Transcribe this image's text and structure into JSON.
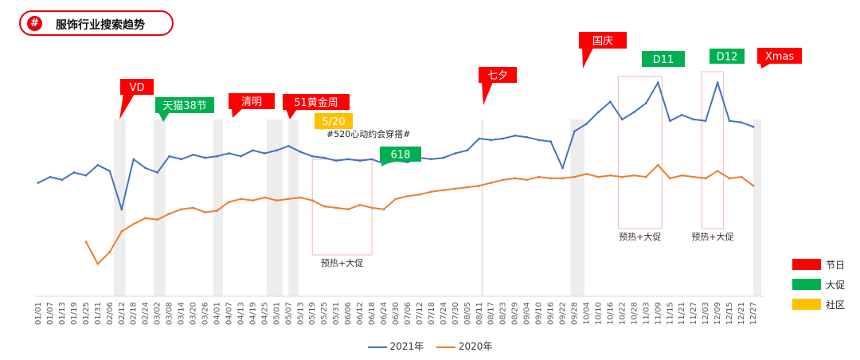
{
  "title": {
    "icon": "#",
    "text": "服饰行业搜索趋势"
  },
  "chart_data": {
    "type": "line",
    "title": "服饰行业搜索趋势",
    "x_ticks": [
      "01/01",
      "01/07",
      "01/13",
      "01/19",
      "01/25",
      "01/31",
      "02/06",
      "02/12",
      "02/18",
      "02/24",
      "03/02",
      "03/08",
      "03/14",
      "03/20",
      "03/26",
      "04/01",
      "04/07",
      "04/13",
      "04/19",
      "04/25",
      "05/01",
      "05/07",
      "05/13",
      "05/19",
      "05/25",
      "05/31",
      "06/06",
      "06/12",
      "06/18",
      "06/24",
      "06/30",
      "07/06",
      "07/12",
      "07/18",
      "07/24",
      "07/30",
      "08/05",
      "08/11",
      "08/17",
      "08/23",
      "08/29",
      "09/04",
      "09/10",
      "09/16",
      "09/22",
      "09/28",
      "10/04",
      "10/10",
      "10/16",
      "10/22",
      "10/28",
      "11/03",
      "11/09",
      "11/15",
      "11/21",
      "11/27",
      "12/03",
      "12/09",
      "12/15",
      "12/21",
      "12/27"
    ],
    "series": [
      {
        "name": "2021年",
        "color": "#4472c4",
        "points": [
          [
            "01/01",
            30
          ],
          [
            "01/07",
            34
          ],
          [
            "01/13",
            32
          ],
          [
            "01/19",
            37
          ],
          [
            "01/25",
            35
          ],
          [
            "01/31",
            42
          ],
          [
            "02/06",
            38
          ],
          [
            "02/12",
            12
          ],
          [
            "02/18",
            46
          ],
          [
            "02/24",
            40
          ],
          [
            "03/02",
            37
          ],
          [
            "03/08",
            48
          ],
          [
            "03/14",
            46
          ],
          [
            "03/20",
            49
          ],
          [
            "03/26",
            47
          ],
          [
            "04/01",
            48
          ],
          [
            "04/07",
            50
          ],
          [
            "04/13",
            48
          ],
          [
            "04/19",
            52
          ],
          [
            "04/25",
            50
          ],
          [
            "05/01",
            52
          ],
          [
            "05/07",
            55
          ],
          [
            "05/13",
            51
          ],
          [
            "05/19",
            48
          ],
          [
            "05/25",
            47
          ],
          [
            "05/31",
            45
          ],
          [
            "06/06",
            46
          ],
          [
            "06/12",
            45
          ],
          [
            "06/18",
            46
          ],
          [
            "06/24",
            43
          ],
          [
            "06/30",
            45
          ],
          [
            "07/06",
            44
          ],
          [
            "07/12",
            47
          ],
          [
            "07/18",
            46
          ],
          [
            "07/24",
            47
          ],
          [
            "07/30",
            50
          ],
          [
            "08/05",
            52
          ],
          [
            "08/11",
            60
          ],
          [
            "08/17",
            59
          ],
          [
            "08/23",
            60
          ],
          [
            "08/29",
            62
          ],
          [
            "09/04",
            61
          ],
          [
            "09/10",
            59
          ],
          [
            "09/16",
            58
          ],
          [
            "09/22",
            40
          ],
          [
            "09/28",
            65
          ],
          [
            "10/04",
            70
          ],
          [
            "10/10",
            78
          ],
          [
            "10/16",
            85
          ],
          [
            "10/22",
            73
          ],
          [
            "10/28",
            78
          ],
          [
            "11/03",
            84
          ],
          [
            "11/09",
            98
          ],
          [
            "11/15",
            72
          ],
          [
            "11/21",
            76
          ],
          [
            "11/27",
            73
          ],
          [
            "12/03",
            72
          ],
          [
            "12/09",
            98
          ],
          [
            "12/15",
            72
          ],
          [
            "12/21",
            71
          ],
          [
            "12/27",
            68
          ]
        ]
      },
      {
        "name": "2020年",
        "color": "#ed7d31",
        "points": [
          [
            "01/25",
            -10
          ],
          [
            "01/31",
            -25
          ],
          [
            "02/06",
            -17
          ],
          [
            "02/12",
            -3
          ],
          [
            "02/18",
            2
          ],
          [
            "02/24",
            6
          ],
          [
            "03/02",
            5
          ],
          [
            "03/08",
            9
          ],
          [
            "03/14",
            12
          ],
          [
            "03/20",
            13
          ],
          [
            "03/26",
            10
          ],
          [
            "04/01",
            11
          ],
          [
            "04/07",
            17
          ],
          [
            "04/13",
            19
          ],
          [
            "04/19",
            18
          ],
          [
            "04/25",
            20
          ],
          [
            "05/01",
            18
          ],
          [
            "05/07",
            19
          ],
          [
            "05/13",
            20
          ],
          [
            "05/19",
            18
          ],
          [
            "05/25",
            14
          ],
          [
            "05/31",
            13
          ],
          [
            "06/06",
            12
          ],
          [
            "06/12",
            15
          ],
          [
            "06/18",
            13
          ],
          [
            "06/24",
            12
          ],
          [
            "06/30",
            19
          ],
          [
            "07/06",
            21
          ],
          [
            "07/12",
            22
          ],
          [
            "07/18",
            24
          ],
          [
            "07/24",
            25
          ],
          [
            "07/30",
            26
          ],
          [
            "08/05",
            27
          ],
          [
            "08/11",
            28
          ],
          [
            "08/17",
            30
          ],
          [
            "08/23",
            32
          ],
          [
            "08/29",
            33
          ],
          [
            "09/04",
            32
          ],
          [
            "09/10",
            34
          ],
          [
            "09/16",
            33
          ],
          [
            "09/22",
            33
          ],
          [
            "09/28",
            34
          ],
          [
            "10/04",
            36
          ],
          [
            "10/10",
            34
          ],
          [
            "10/16",
            35
          ],
          [
            "10/22",
            34
          ],
          [
            "10/28",
            35
          ],
          [
            "11/03",
            34
          ],
          [
            "11/09",
            42
          ],
          [
            "11/15",
            33
          ],
          [
            "11/21",
            35
          ],
          [
            "11/27",
            34
          ],
          [
            "12/03",
            33
          ],
          [
            "12/09",
            38
          ],
          [
            "12/15",
            33
          ],
          [
            "12/21",
            34
          ],
          [
            "12/27",
            28
          ]
        ]
      }
    ],
    "shaded_periods": [
      {
        "from": "02/08",
        "to": "02/14",
        "label": ""
      },
      {
        "from": "02/28",
        "to": "03/06",
        "label": ""
      },
      {
        "from": "03/30",
        "to": "04/04",
        "label": ""
      },
      {
        "from": "04/26",
        "to": "05/04",
        "label": ""
      },
      {
        "from": "05/07",
        "to": "05/12",
        "label": ""
      },
      {
        "from": "08/12",
        "to": "08/13",
        "label": ""
      },
      {
        "from": "09/26",
        "to": "10/03",
        "label": ""
      },
      {
        "from": "12/27",
        "to": "12/31",
        "label": ""
      }
    ],
    "presale_boxes": [
      {
        "from": "05/19",
        "to": "06/18",
        "label": "预热+大促"
      },
      {
        "from": "10/20",
        "to": "11/11",
        "label": "预热+大促"
      },
      {
        "from": "12/01",
        "to": "12/12",
        "label": "预热+大促"
      }
    ],
    "callouts": [
      {
        "text": "VD",
        "category": "节日"
      },
      {
        "text": "天猫38节",
        "category": "大促"
      },
      {
        "text": "清明",
        "category": "节日"
      },
      {
        "text": "51黄金周",
        "category": "节日"
      },
      {
        "text": "5/20",
        "category": "社区",
        "note": "#520心动约会穿搭#"
      },
      {
        "text": "618",
        "category": "大促"
      },
      {
        "text": "七夕",
        "category": "节日"
      },
      {
        "text": "国庆",
        "category": "节日"
      },
      {
        "text": "D11",
        "category": "大促"
      },
      {
        "text": "D12",
        "category": "大促"
      },
      {
        "text": "Xmas",
        "category": "节日"
      }
    ],
    "legend": {
      "categories": [
        {
          "label": "节日",
          "color": "#ff0000"
        },
        {
          "label": "大促",
          "color": "#00b050"
        },
        {
          "label": "社区",
          "color": "#ffc000"
        }
      ]
    }
  }
}
